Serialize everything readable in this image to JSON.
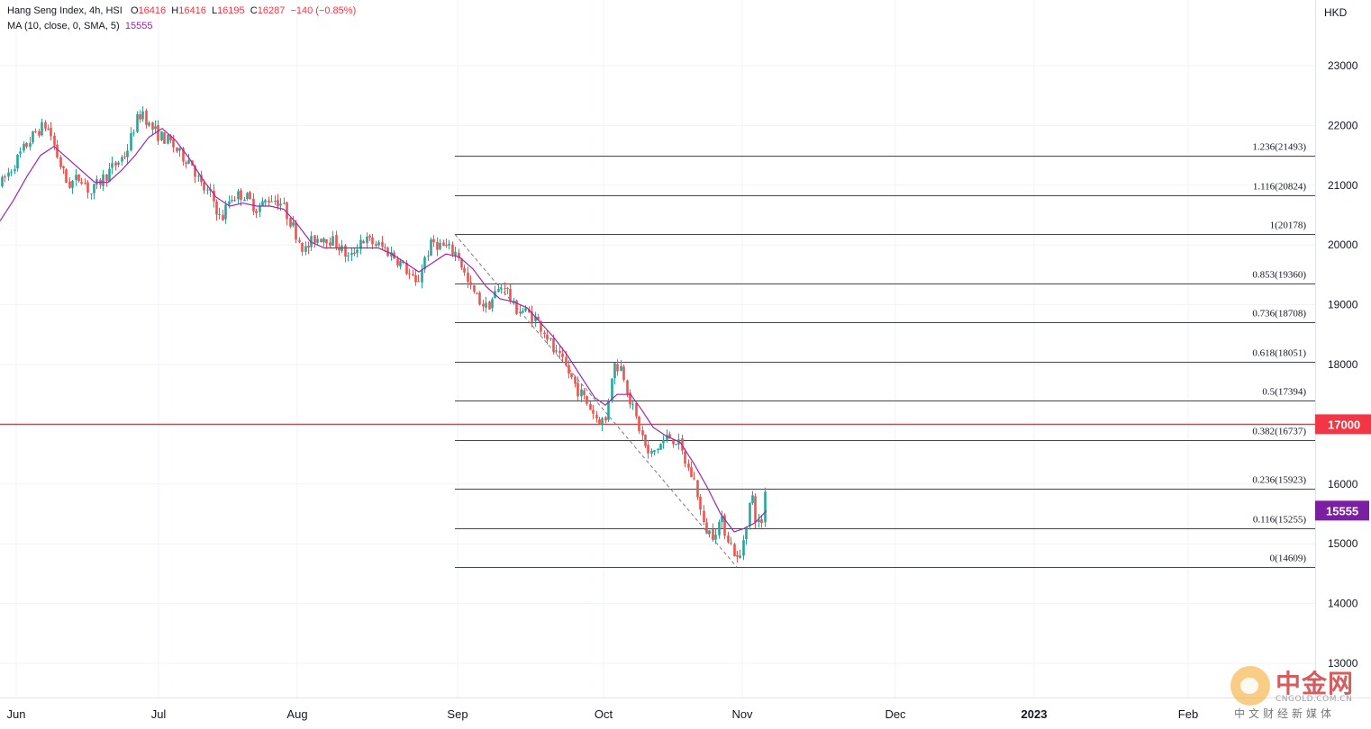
{
  "legend": {
    "symbol": "Hang Seng Index, 4h, HSI",
    "open_label": "O",
    "open": "16416",
    "high_label": "H",
    "high": "16416",
    "low_label": "L",
    "low": "16195",
    "close_label": "C",
    "close": "16287",
    "change": "−140 (−0.85%)",
    "ma_label": "MA (10, close, 0, SMA, 5)",
    "ma_value": "15555"
  },
  "watermark": {
    "name": "中金网",
    "url": "CNGOLD.COM.CN",
    "slogan": "中文财经新媒体"
  },
  "colors": {
    "up": "#26a69a",
    "down": "#ef5350",
    "ma": "#9c27b0",
    "hline": "#f23645",
    "fib": "#434651",
    "grid": "#f0f3fa",
    "axis_text": "#131722"
  },
  "chart_data": {
    "type": "candlestick",
    "currency": "HKD",
    "y_range": [
      12400,
      24200
    ],
    "y_ticks": [
      13000,
      14000,
      15000,
      16000,
      17000,
      18000,
      19000,
      20000,
      21000,
      22000,
      23000
    ],
    "x_labels": [
      "Jun",
      "Jul",
      "Aug",
      "Sep",
      "Oct",
      "Nov",
      "Dec",
      "2023",
      "Feb"
    ],
    "grid": true,
    "horizontal_line": {
      "price": 17000,
      "label": "17000"
    },
    "current_ma": {
      "price": 15555,
      "label": "15555"
    },
    "fibonacci": [
      {
        "ratio": "1.236",
        "price": 21493,
        "label": "1.236(21493)"
      },
      {
        "ratio": "1.116",
        "price": 20824,
        "label": "1.116(20824)"
      },
      {
        "ratio": "1",
        "price": 20178,
        "label": "1(20178)"
      },
      {
        "ratio": "0.853",
        "price": 19360,
        "label": "0.853(19360)"
      },
      {
        "ratio": "0.736",
        "price": 18708,
        "label": "0.736(18708)"
      },
      {
        "ratio": "0.618",
        "price": 18051,
        "label": "0.618(18051)"
      },
      {
        "ratio": "0.5",
        "price": 17394,
        "label": "0.5(17394)"
      },
      {
        "ratio": "0.382",
        "price": 16737,
        "label": "0.382(16737)"
      },
      {
        "ratio": "0.236",
        "price": 15923,
        "label": "0.236(15923)"
      },
      {
        "ratio": "0.116",
        "price": 15255,
        "label": "0.116(15255)"
      },
      {
        "ratio": "0",
        "price": 14609,
        "label": "0(14609)"
      }
    ],
    "price_path": [
      [
        0,
        21000
      ],
      [
        15,
        21350
      ],
      [
        30,
        21700
      ],
      [
        40,
        21900
      ],
      [
        50,
        22000
      ],
      [
        55,
        21900
      ],
      [
        65,
        21400
      ],
      [
        75,
        21000
      ],
      [
        90,
        21150
      ],
      [
        100,
        20850
      ],
      [
        110,
        21050
      ],
      [
        125,
        21300
      ],
      [
        140,
        21550
      ],
      [
        150,
        22050
      ],
      [
        158,
        22250
      ],
      [
        165,
        22000
      ],
      [
        175,
        21850
      ],
      [
        190,
        21700
      ],
      [
        200,
        21500
      ],
      [
        212,
        21400
      ],
      [
        222,
        21000
      ],
      [
        235,
        20800
      ],
      [
        245,
        20400
      ],
      [
        255,
        20800
      ],
      [
        270,
        20850
      ],
      [
        285,
        20600
      ],
      [
        300,
        20800
      ],
      [
        312,
        20700
      ],
      [
        325,
        20300
      ],
      [
        338,
        19900
      ],
      [
        348,
        20100
      ],
      [
        360,
        20150
      ],
      [
        375,
        20000
      ],
      [
        388,
        19750
      ],
      [
        400,
        20100
      ],
      [
        412,
        20050
      ],
      [
        425,
        19950
      ],
      [
        438,
        19800
      ],
      [
        450,
        19600
      ],
      [
        462,
        19300
      ],
      [
        470,
        19750
      ],
      [
        480,
        20050
      ],
      [
        495,
        19950
      ],
      [
        508,
        19850
      ],
      [
        520,
        19300
      ],
      [
        530,
        19100
      ],
      [
        540,
        18950
      ],
      [
        550,
        19200
      ],
      [
        560,
        19350
      ],
      [
        570,
        18950
      ],
      [
        580,
        18900
      ],
      [
        592,
        18800
      ],
      [
        605,
        18550
      ],
      [
        615,
        18200
      ],
      [
        628,
        17950
      ],
      [
        640,
        17600
      ],
      [
        652,
        17350
      ],
      [
        662,
        17100
      ],
      [
        672,
        17050
      ],
      [
        680,
        18000
      ],
      [
        690,
        17950
      ],
      [
        700,
        17350
      ],
      [
        710,
        16900
      ],
      [
        720,
        16450
      ],
      [
        732,
        16650
      ],
      [
        742,
        16800
      ],
      [
        752,
        16700
      ],
      [
        762,
        16300
      ],
      [
        772,
        16000
      ],
      [
        780,
        15300
      ],
      [
        790,
        15150
      ],
      [
        800,
        15400
      ],
      [
        808,
        15100
      ],
      [
        815,
        14850
      ],
      [
        820,
        14650
      ],
      [
        826,
        15200
      ],
      [
        834,
        15850
      ],
      [
        840,
        15300
      ],
      [
        846,
        15400
      ],
      [
        851,
        16300
      ]
    ],
    "ma_path": [
      [
        0,
        20400
      ],
      [
        15,
        20750
      ],
      [
        30,
        21150
      ],
      [
        45,
        21500
      ],
      [
        60,
        21650
      ],
      [
        75,
        21450
      ],
      [
        90,
        21250
      ],
      [
        105,
        21050
      ],
      [
        120,
        21050
      ],
      [
        135,
        21250
      ],
      [
        150,
        21500
      ],
      [
        165,
        21800
      ],
      [
        180,
        21950
      ],
      [
        195,
        21750
      ],
      [
        210,
        21450
      ],
      [
        225,
        21100
      ],
      [
        240,
        20800
      ],
      [
        255,
        20650
      ],
      [
        270,
        20700
      ],
      [
        285,
        20650
      ],
      [
        300,
        20650
      ],
      [
        315,
        20600
      ],
      [
        330,
        20350
      ],
      [
        345,
        20050
      ],
      [
        360,
        19950
      ],
      [
        375,
        19950
      ],
      [
        390,
        19950
      ],
      [
        405,
        19950
      ],
      [
        420,
        19950
      ],
      [
        435,
        19850
      ],
      [
        450,
        19700
      ],
      [
        465,
        19550
      ],
      [
        480,
        19700
      ],
      [
        495,
        19850
      ],
      [
        510,
        19800
      ],
      [
        525,
        19600
      ],
      [
        540,
        19300
      ],
      [
        555,
        19100
      ],
      [
        570,
        19050
      ],
      [
        585,
        18950
      ],
      [
        600,
        18700
      ],
      [
        615,
        18450
      ],
      [
        630,
        18150
      ],
      [
        645,
        17800
      ],
      [
        660,
        17450
      ],
      [
        672,
        17320
      ],
      [
        685,
        17500
      ],
      [
        700,
        17500
      ],
      [
        712,
        17250
      ],
      [
        725,
        16950
      ],
      [
        740,
        16800
      ],
      [
        755,
        16700
      ],
      [
        770,
        16350
      ],
      [
        785,
        15950
      ],
      [
        800,
        15500
      ],
      [
        815,
        15200
      ],
      [
        825,
        15250
      ],
      [
        838,
        15350
      ],
      [
        851,
        15555
      ]
    ]
  }
}
